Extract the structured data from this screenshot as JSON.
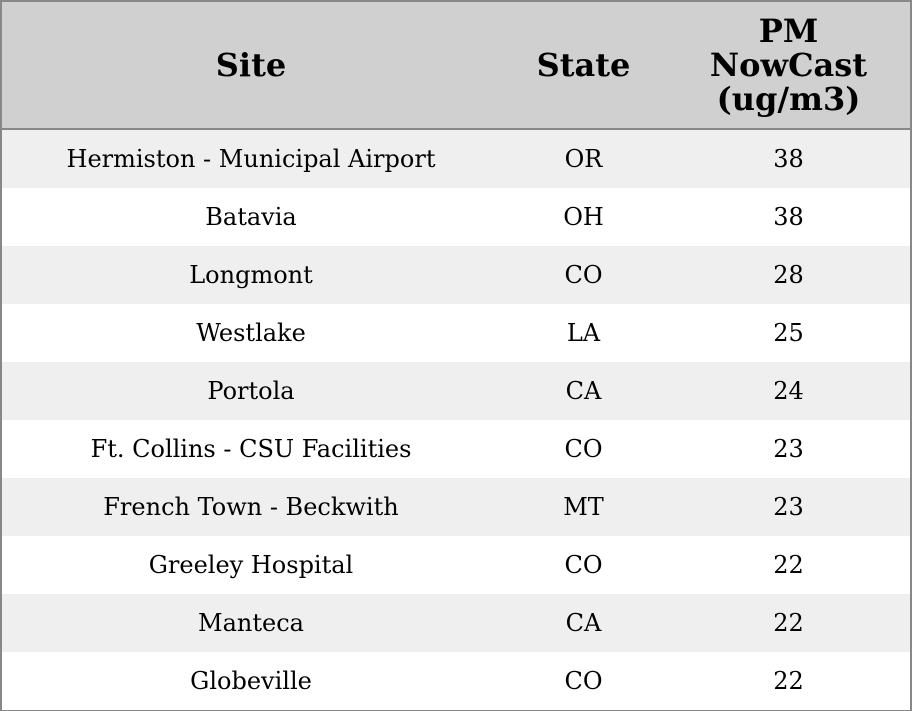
{
  "table": {
    "header": [
      "Site",
      "State",
      "PM NowCast (ug/m3)"
    ],
    "rows": [
      [
        "Hermiston - Municipal Airport",
        "OR",
        38
      ],
      [
        "Batavia",
        "OH",
        38
      ],
      [
        "Longmont",
        "CO",
        28
      ],
      [
        "Westlake",
        "LA",
        25
      ],
      [
        "Portola",
        "CA",
        24
      ],
      [
        "Ft. Collins - CSU Facilities",
        "CO",
        23
      ],
      [
        "French Town - Beckwith",
        "MT",
        23
      ],
      [
        "Greeley Hospital",
        "CO",
        22
      ],
      [
        "Manteca",
        "CA",
        22
      ],
      [
        "Globeville",
        "CO",
        22
      ]
    ]
  }
}
